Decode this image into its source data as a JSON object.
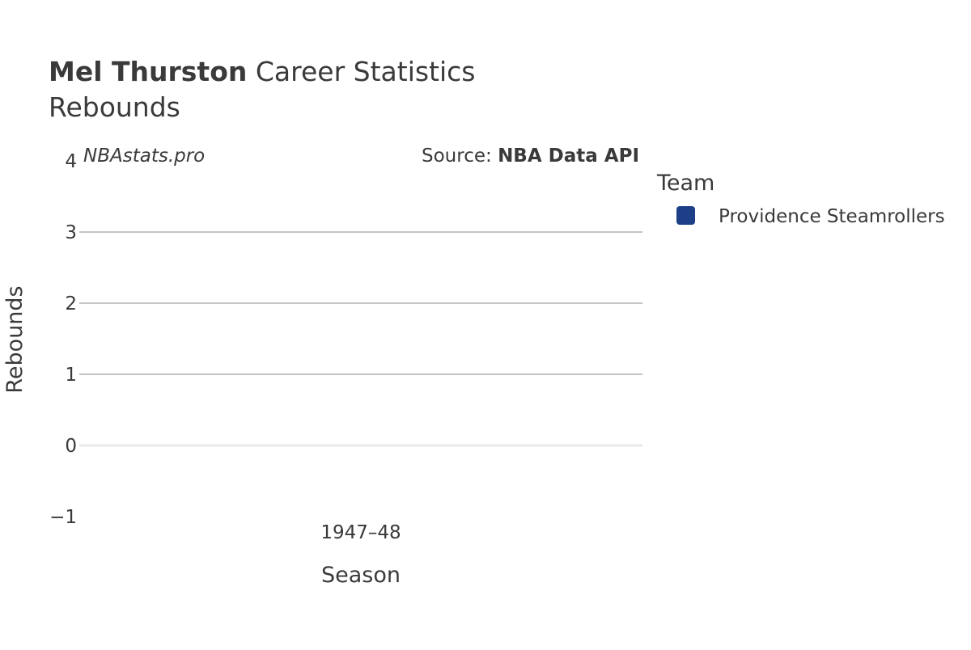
{
  "chart_data": {
    "type": "bar",
    "title_bold": "Mel Thurston",
    "title": "Career Statistics",
    "subtitle": "Rebounds",
    "watermark": "NBAstats.pro",
    "source_label": "Source:",
    "source": "NBA Data API",
    "x_label": "Season",
    "y_label": "Rebounds",
    "legend_title": "Team",
    "categories": [
      "1947–48"
    ],
    "series": [
      {
        "name": "Providence Steamrollers",
        "color": "#1d3f87",
        "values": [
          0
        ]
      }
    ],
    "ylim": [
      -1,
      4
    ],
    "yticks": [
      {
        "value": -1,
        "label": "−1"
      },
      0,
      1,
      2,
      3,
      4
    ],
    "grid": true
  }
}
